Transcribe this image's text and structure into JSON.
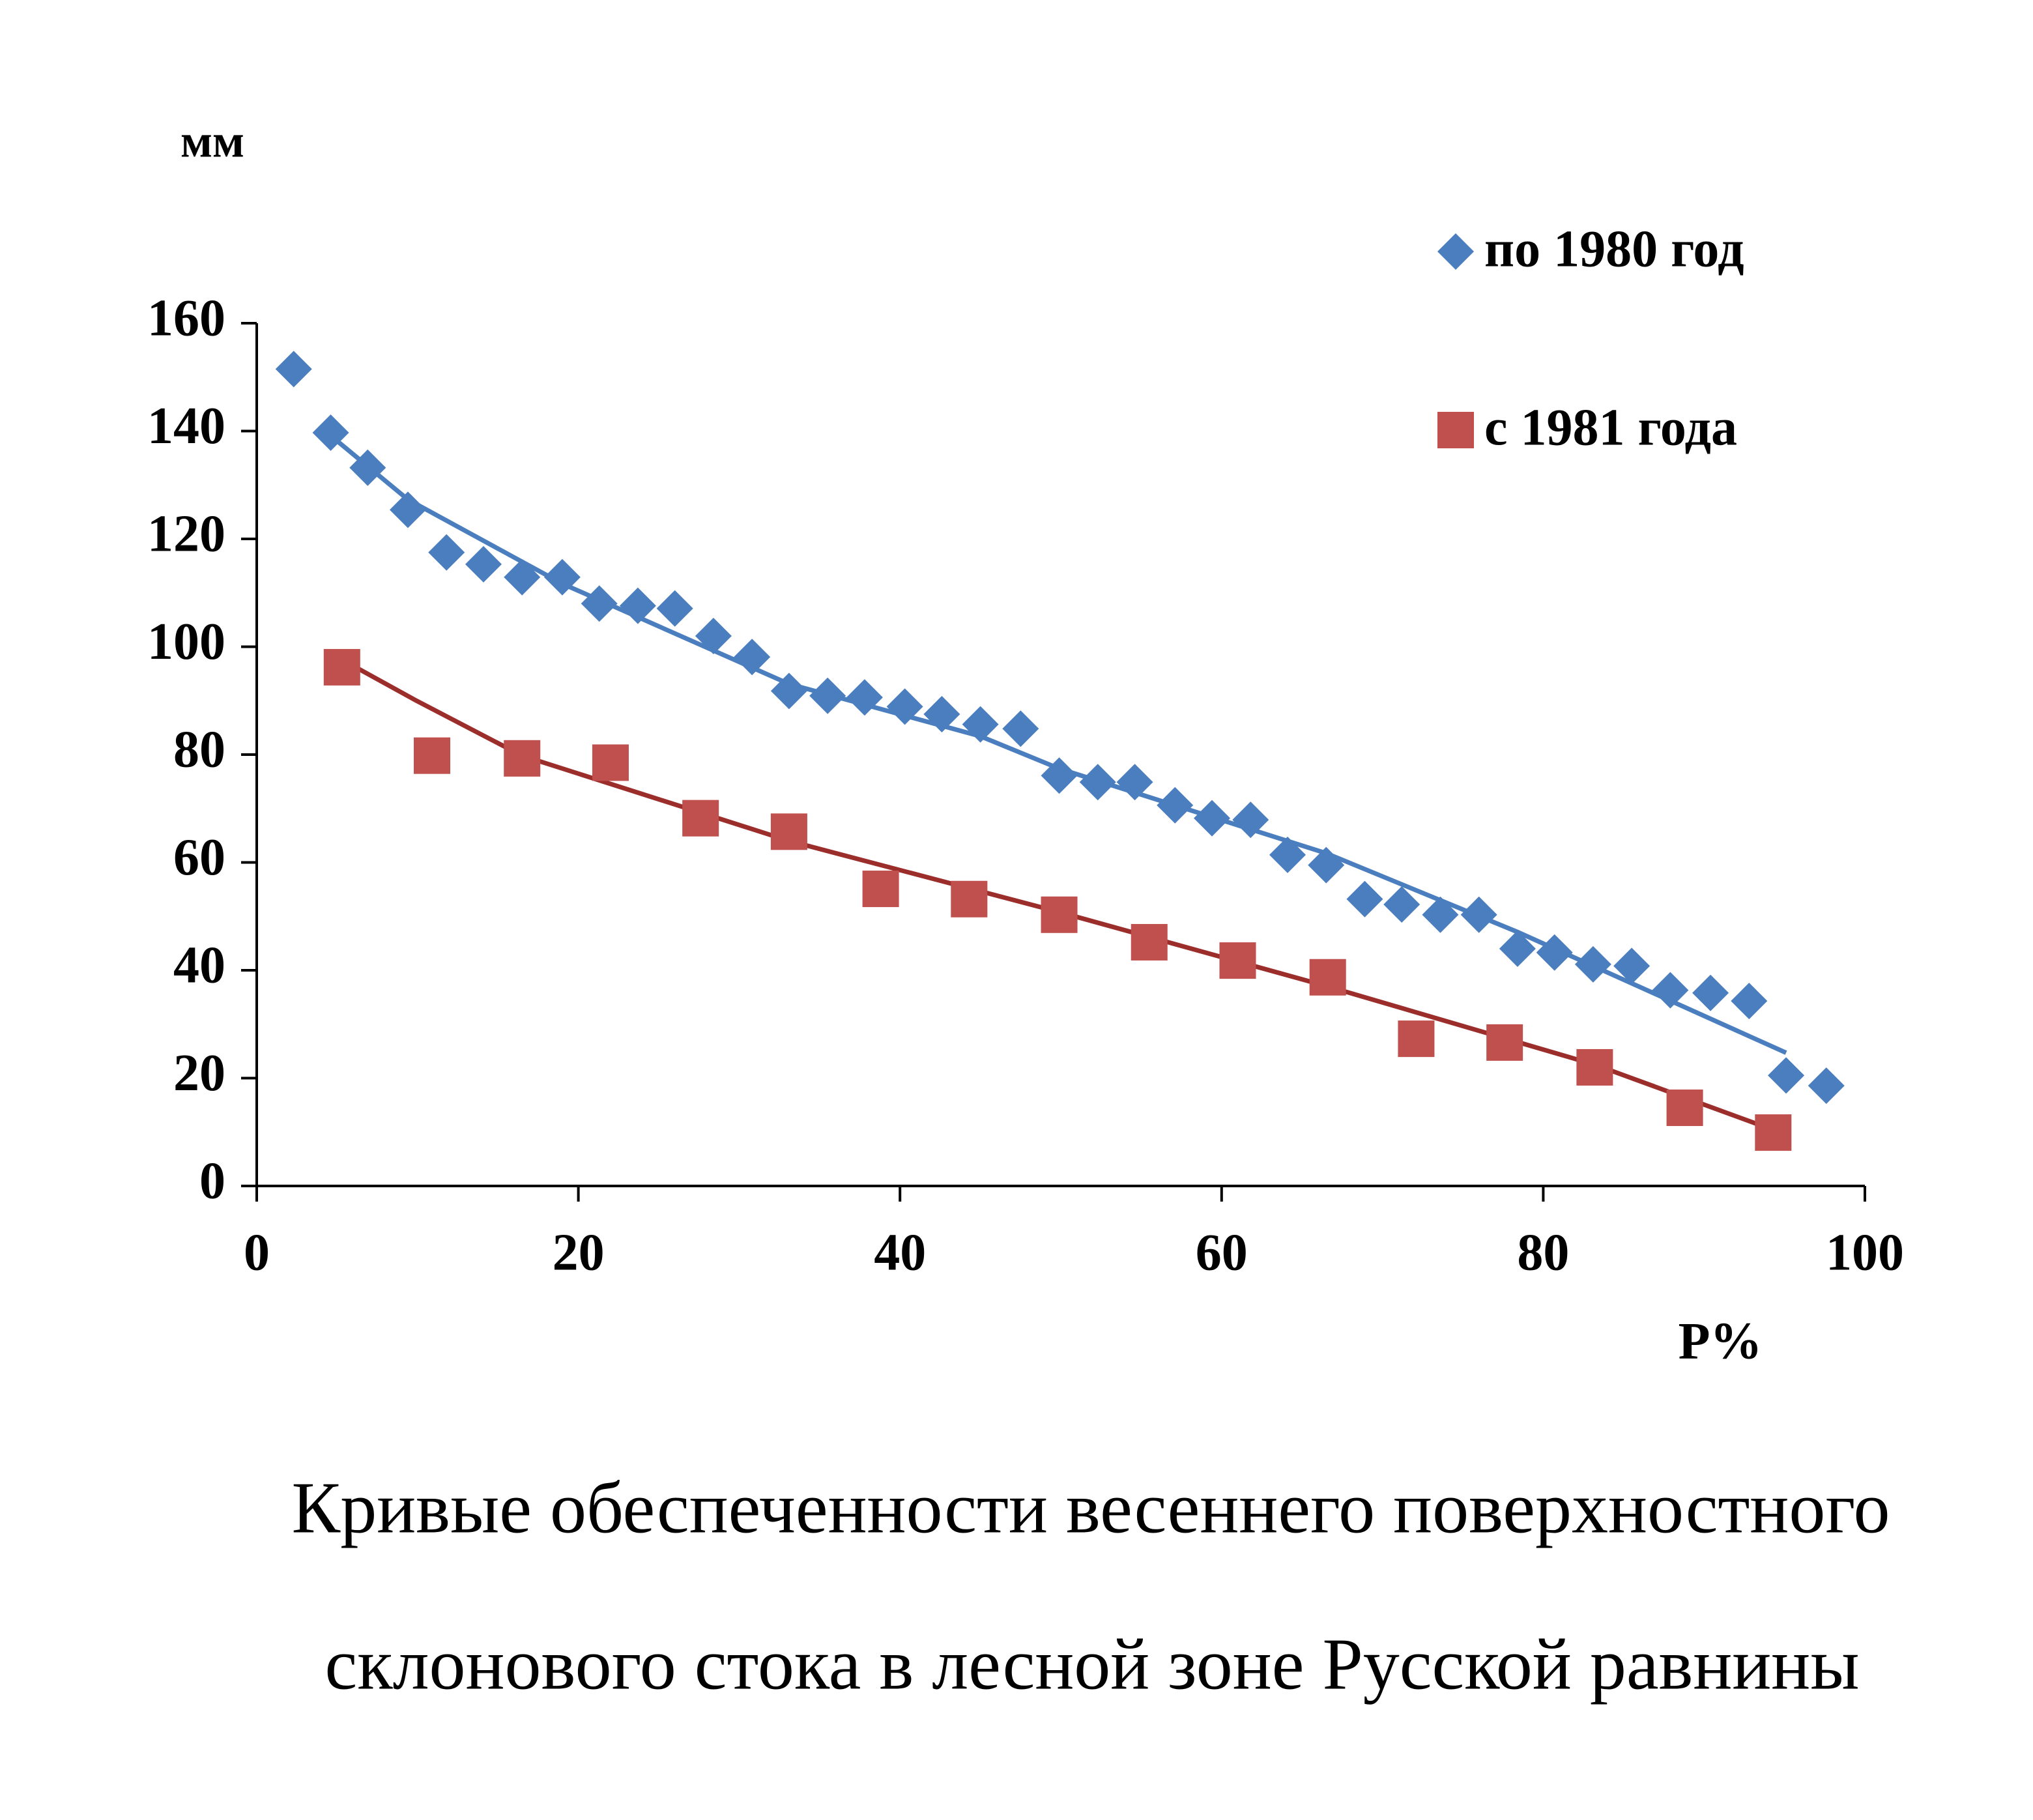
{
  "chart_data": {
    "type": "scatter",
    "y_unit_label": "мм",
    "xlabel": "P%",
    "xlim": [
      0,
      100
    ],
    "xticks": [
      0,
      20,
      40,
      60,
      80,
      100
    ],
    "ylim": [
      0,
      160
    ],
    "yticks": [
      0,
      20,
      40,
      60,
      80,
      100,
      120,
      140,
      160
    ],
    "series": [
      {
        "name": "по 1980 год",
        "color": "#4a7ebf",
        "marker": "diamond",
        "x": [
          2.3,
          4.6,
          6.9,
          9.4,
          11.8,
          14.1,
          16.5,
          19.0,
          21.3,
          23.7,
          26.0,
          28.4,
          30.8,
          33.1,
          35.5,
          37.8,
          40.3,
          42.6,
          45.0,
          47.5,
          49.9,
          52.3,
          54.6,
          57.1,
          59.4,
          61.8,
          64.1,
          66.5,
          68.9,
          71.2,
          73.6,
          76.0,
          78.4,
          80.7,
          83.1,
          85.5,
          87.9,
          90.4,
          92.8,
          95.1,
          97.6
        ],
        "values": [
          151.5,
          139.7,
          133.2,
          125.4,
          117.5,
          115.3,
          112.9,
          112.9,
          108.0,
          107.6,
          107.1,
          102.0,
          98.1,
          91.8,
          90.9,
          90.6,
          88.9,
          87.5,
          85.6,
          84.8,
          76.1,
          74.9,
          74.9,
          70.6,
          68.2,
          67.9,
          61.4,
          59.5,
          53.2,
          52.2,
          50.3,
          50.3,
          44.0,
          43.3,
          41.1,
          40.8,
          36.3,
          35.8,
          34.3,
          20.5,
          18.6
        ],
        "trend": {
          "x": [
            4.7,
            9.4,
            19.0,
            33.1,
            45.0,
            49.9,
            66.5,
            78.4,
            95.1
          ],
          "values": [
            138.9,
            127.3,
            111.7,
            93.1,
            83.4,
            77.4,
            61.7,
            47.1,
            24.7
          ]
        }
      },
      {
        "name": "с 1981 года",
        "color": "#c0504d",
        "marker": "square",
        "x": [
          5.3,
          10.9,
          16.5,
          22.0,
          27.6,
          33.1,
          38.8,
          44.3,
          49.9,
          55.5,
          61.0,
          66.6,
          72.1,
          77.6,
          83.2,
          88.8,
          94.3
        ],
        "values": [
          96.2,
          79.8,
          79.3,
          78.5,
          68.2,
          65.7,
          55.1,
          53.2,
          50.3,
          45.2,
          41.8,
          38.7,
          27.3,
          26.6,
          22.0,
          14.5,
          9.9
        ],
        "trend": {
          "x": [
            5.3,
            9.8,
            16.5,
            33.1,
            49.9,
            66.6,
            83.2,
            94.3
          ],
          "values": [
            97.6,
            90.2,
            79.8,
            64.0,
            50.8,
            37.0,
            22.5,
            10.4
          ]
        }
      }
    ],
    "caption_lines": [
      "Кривые обеспеченности весеннего поверхностного",
      "склонового стока в лесной зоне  Русской равнины"
    ]
  }
}
